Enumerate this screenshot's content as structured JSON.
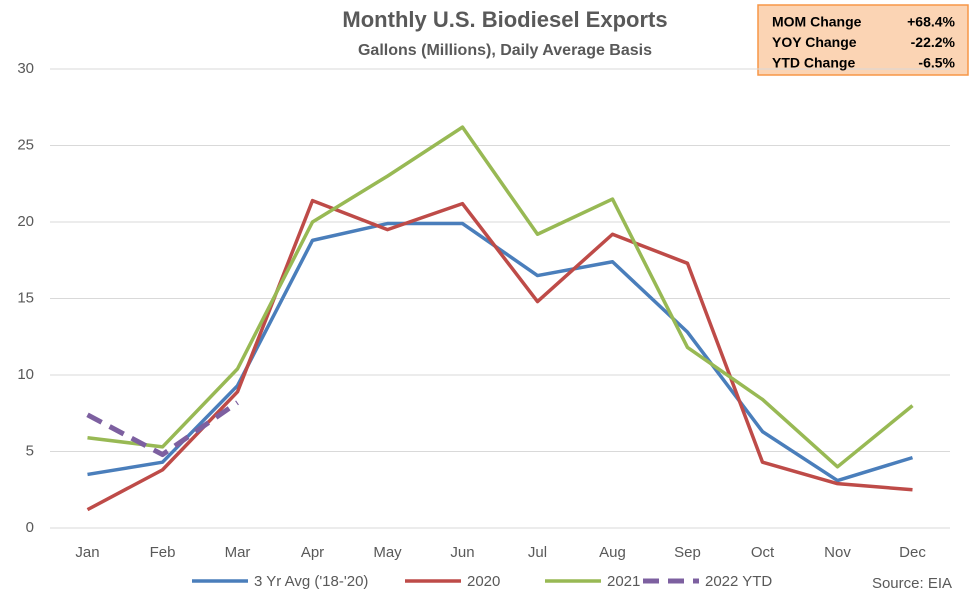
{
  "chart_data": {
    "type": "line",
    "title": "Monthly U.S. Biodiesel Exports",
    "subtitle": "Gallons (Millions), Daily Average Basis",
    "source": "Source: EIA",
    "annotations": [
      {
        "label": "MOM Change",
        "value": "+68.4%"
      },
      {
        "label": "YOY Change",
        "value": "-22.2%"
      },
      {
        "label": "YTD Change",
        "value": "-6.5%"
      }
    ],
    "categories": [
      "Jan",
      "Feb",
      "Mar",
      "Apr",
      "May",
      "Jun",
      "Jul",
      "Aug",
      "Sep",
      "Oct",
      "Nov",
      "Dec"
    ],
    "series": [
      {
        "name": "3 Yr Avg ('18-'20)",
        "color": "#4a7ebb",
        "dashed": false,
        "values": [
          3.5,
          4.3,
          9.3,
          18.8,
          19.9,
          19.9,
          16.5,
          17.4,
          12.8,
          6.3,
          3.1,
          4.6
        ]
      },
      {
        "name": "2020",
        "color": "#be4b48",
        "dashed": false,
        "values": [
          1.2,
          3.8,
          8.9,
          21.4,
          19.5,
          21.2,
          14.8,
          19.2,
          17.3,
          4.3,
          2.9,
          2.5
        ]
      },
      {
        "name": "2021",
        "color": "#98b954",
        "dashed": false,
        "values": [
          5.9,
          5.3,
          10.4,
          20.0,
          23.0,
          26.2,
          19.2,
          21.5,
          11.8,
          8.4,
          4.0,
          8.0
        ]
      },
      {
        "name": "2022 YTD",
        "color": "#7d60a0",
        "dashed": true,
        "values": [
          7.4,
          4.8,
          8.2,
          null,
          null,
          null,
          null,
          null,
          null,
          null,
          null,
          null
        ]
      }
    ],
    "ylim": [
      0,
      30
    ],
    "yticks": [
      0,
      5,
      10,
      15,
      20,
      25,
      30
    ],
    "grid": true
  }
}
